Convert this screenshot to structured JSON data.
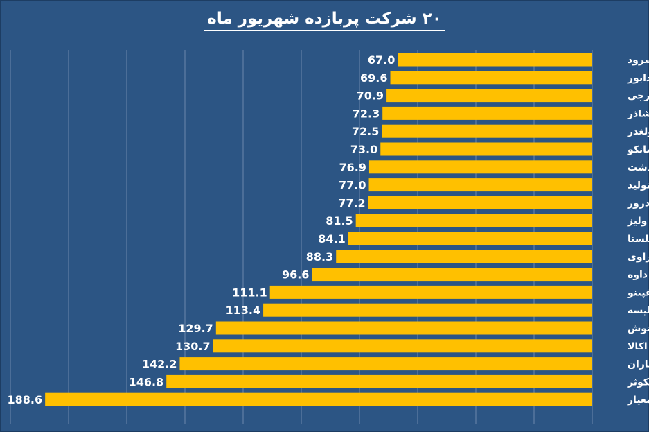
{
  "chart_data": {
    "type": "bar",
    "orientation": "horizontal",
    "direction": "right-to-left",
    "title": "۲۰ شرکت پربازده شهریور ماه",
    "xlabel": "",
    "ylabel": "",
    "xlim": [
      0,
      190
    ],
    "grid": true,
    "legend": "none",
    "colors": {
      "background": "#2c5584",
      "bar": "#ffc000",
      "grid": "#6d88ab",
      "text": "#ffffff"
    },
    "categories": [
      "سرود",
      "دابور",
      "غگرجی",
      "غشاذر",
      "ولغدر",
      "دسانکو",
      "غدشت",
      "دتولید",
      "دروز",
      "ولیز",
      "غگلستا",
      "دزهراوی",
      "داوه",
      "غپینو",
      "تلیسه",
      "غنوش",
      "اکالا",
      "فسازان",
      "گکوثر",
      "معیار"
    ],
    "labels": [
      "67.0",
      "69.6",
      "70.9",
      "72.3",
      "72.5",
      "73.0",
      "76.9",
      "77.0",
      "77.2",
      "81.5",
      "84.1",
      "88.3",
      "96.6",
      "111.1",
      "113.4",
      "129.7",
      "130.7",
      "142.2",
      "146.8",
      "188.6"
    ],
    "values": [
      67.0,
      69.6,
      70.9,
      72.3,
      72.5,
      73.0,
      76.9,
      77.0,
      77.2,
      81.5,
      84.1,
      88.3,
      96.6,
      111.1,
      113.4,
      129.7,
      130.7,
      142.2,
      146.8,
      188.6
    ]
  }
}
